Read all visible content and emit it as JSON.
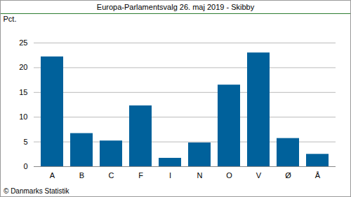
{
  "chart_data": {
    "type": "bar",
    "title": "Europa-Parlamentsvalg 26. maj 2019 - Skibby",
    "y_label": "Pct.",
    "caption": "© Danmarks Statistik",
    "categories": [
      "A",
      "B",
      "C",
      "F",
      "I",
      "N",
      "O",
      "V",
      "Ø",
      "Å"
    ],
    "values": [
      22.2,
      6.7,
      5.2,
      12.3,
      1.7,
      4.8,
      16.5,
      23.0,
      5.7,
      2.5
    ],
    "color": "#00619b",
    "ylim": [
      0,
      25
    ],
    "yticks": [
      0,
      5,
      10,
      15,
      20,
      25
    ],
    "grid": true
  }
}
